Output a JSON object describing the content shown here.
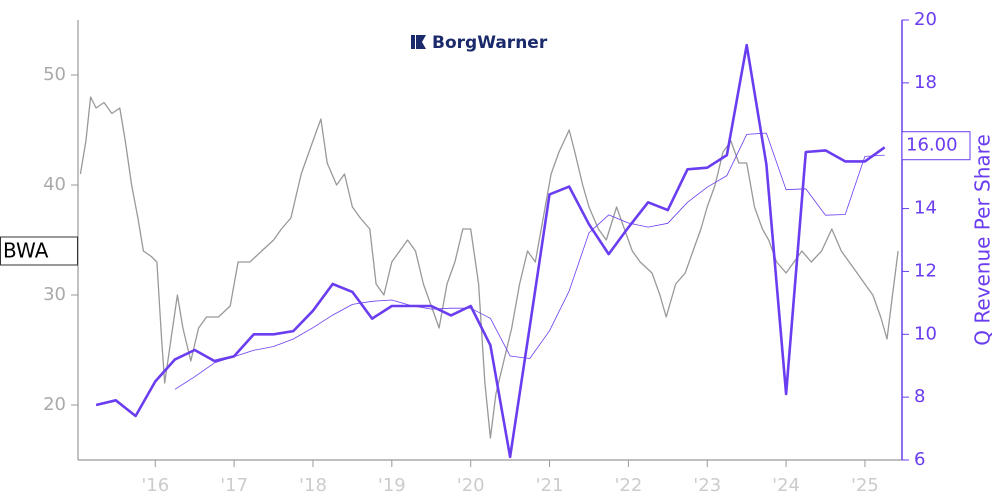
{
  "chart_data": {
    "type": "line",
    "logo": "BorgWarner",
    "ticker": "BWA",
    "y2_label": "Q Revenue Per Share",
    "y2_marker": {
      "value": 16,
      "label": "16.00"
    },
    "xlim": [
      2015.02,
      2025.47
    ],
    "xticks": [
      {
        "value": 2016,
        "label": "'16"
      },
      {
        "value": 2017,
        "label": "'17"
      },
      {
        "value": 2018,
        "label": "'18"
      },
      {
        "value": 2019,
        "label": "'19"
      },
      {
        "value": 2020,
        "label": "'20"
      },
      {
        "value": 2021,
        "label": "'21"
      },
      {
        "value": 2022,
        "label": "'22"
      },
      {
        "value": 2023,
        "label": "'23"
      },
      {
        "value": 2024,
        "label": "'24"
      },
      {
        "value": 2025,
        "label": "'25"
      }
    ],
    "ylim": [
      15,
      55
    ],
    "yticks": [
      20,
      30,
      40,
      50
    ],
    "y2lim": [
      6,
      20
    ],
    "y2ticks": [
      6,
      8,
      10,
      12,
      14,
      16,
      18,
      20
    ],
    "axis_color": "#999999",
    "y2_color": "#6a3df0",
    "series": [
      {
        "color": "#999999",
        "width": 1.3,
        "x": [
          2015.05,
          2015.12,
          2015.18,
          2015.25,
          2015.35,
          2015.45,
          2015.55,
          2015.62,
          2015.7,
          2015.78,
          2015.85,
          2015.95,
          2016.02,
          2016.08,
          2016.12,
          2016.2,
          2016.28,
          2016.35,
          2016.45,
          2016.55,
          2016.65,
          2016.8,
          2016.95,
          2017.05,
          2017.2,
          2017.35,
          2017.5,
          2017.6,
          2017.72,
          2017.85,
          2017.95,
          2018.05,
          2018.1,
          2018.18,
          2018.3,
          2018.4,
          2018.5,
          2018.6,
          2018.72,
          2018.8,
          2018.9,
          2019.0,
          2019.1,
          2019.2,
          2019.3,
          2019.4,
          2019.5,
          2019.6,
          2019.7,
          2019.8,
          2019.9,
          2020.0,
          2020.1,
          2020.18,
          2020.25,
          2020.32,
          2020.42,
          2020.52,
          2020.62,
          2020.72,
          2020.82,
          2020.92,
          2021.02,
          2021.12,
          2021.25,
          2021.32,
          2021.42,
          2021.5,
          2021.62,
          2021.72,
          2021.85,
          2021.95,
          2022.05,
          2022.15,
          2022.3,
          2022.4,
          2022.48,
          2022.6,
          2022.72,
          2022.82,
          2022.92,
          2023.0,
          2023.1,
          2023.2,
          2023.3,
          2023.4,
          2023.5,
          2023.6,
          2023.7,
          2023.78,
          2023.88,
          2024.0,
          2024.1,
          2024.2,
          2024.32,
          2024.45,
          2024.58,
          2024.7,
          2024.8,
          2024.9,
          2025.0,
          2025.1,
          2025.2,
          2025.28,
          2025.35,
          2025.42
        ],
        "values": [
          41,
          44,
          48,
          47,
          47.5,
          46.5,
          47,
          44,
          40,
          37,
          34,
          33.5,
          33,
          26,
          22,
          26,
          30,
          27,
          24,
          27,
          28,
          28,
          29,
          33,
          33,
          34,
          35,
          36,
          37,
          41,
          43,
          45,
          46,
          42,
          40,
          41,
          38,
          37,
          36,
          31,
          30,
          33,
          34,
          35,
          34,
          31,
          29,
          27,
          31,
          33,
          36,
          36,
          31,
          22,
          17,
          21,
          24,
          27,
          31,
          34,
          33,
          37,
          41,
          43,
          45,
          43,
          40,
          38,
          36,
          35,
          38,
          36,
          34,
          33,
          32,
          30,
          28,
          31,
          32,
          34,
          36,
          38,
          40,
          43,
          44,
          42,
          42,
          38,
          36,
          35,
          33,
          32,
          33,
          34,
          33,
          34,
          36,
          34,
          33,
          32,
          31,
          30,
          28,
          26,
          30,
          34
        ]
      },
      {
        "color": "#6a3df0",
        "width": 2.6,
        "axis": "y2",
        "x": [
          2015.25,
          2015.5,
          2015.75,
          2016,
          2016.25,
          2016.5,
          2016.75,
          2017,
          2017.25,
          2017.5,
          2017.75,
          2018,
          2018.25,
          2018.5,
          2018.75,
          2019,
          2019.25,
          2019.5,
          2019.75,
          2020,
          2020.25,
          2020.5,
          2020.75,
          2021,
          2021.25,
          2021.5,
          2021.75,
          2022,
          2022.25,
          2022.5,
          2022.75,
          2023,
          2023.25,
          2023.5,
          2023.75,
          2024,
          2024.25,
          2024.5,
          2024.75,
          2025,
          2025.25
        ],
        "values": [
          7.75,
          7.9,
          7.4,
          8.5,
          9.2,
          9.5,
          9.15,
          9.3,
          10.0,
          10.0,
          10.1,
          10.75,
          11.6,
          11.35,
          10.5,
          10.9,
          10.9,
          10.9,
          10.6,
          10.9,
          9.65,
          6.1,
          10.25,
          14.45,
          14.7,
          13.5,
          12.55,
          13.4,
          14.2,
          13.95,
          15.25,
          15.3,
          15.7,
          19.2,
          15.4,
          8.1,
          15.8,
          15.85,
          15.5,
          15.5,
          15.95
        ]
      },
      {
        "color": "#6a3df0",
        "width": 0.8,
        "axis": "y2",
        "x": [
          2015.25,
          2015.5,
          2015.75,
          2016,
          2016.25,
          2016.5,
          2016.75,
          2017,
          2017.25,
          2017.5,
          2017.75,
          2018,
          2018.25,
          2018.5,
          2018.75,
          2019,
          2019.25,
          2019.5,
          2019.75,
          2020,
          2020.25,
          2020.5,
          2020.75,
          2021,
          2021.25,
          2021.5,
          2021.75,
          2022,
          2022.25,
          2022.5,
          2022.75,
          2023,
          2023.25,
          2023.5,
          2023.75,
          2024,
          2024.25,
          2024.5,
          2024.75,
          2025,
          2025.25
        ],
        "values": [
          null,
          null,
          null,
          null,
          8.25,
          8.65,
          9.09,
          9.29,
          9.49,
          9.61,
          9.85,
          10.21,
          10.61,
          10.95,
          11.05,
          11.09,
          10.91,
          10.8,
          10.83,
          10.83,
          10.51,
          9.31,
          9.23,
          10.11,
          11.38,
          13.23,
          13.8,
          13.54,
          13.41,
          13.53,
          14.2,
          14.68,
          15.05,
          16.36,
          16.4,
          14.6,
          14.63,
          13.79,
          13.81,
          15.66,
          15.7
        ]
      }
    ]
  }
}
